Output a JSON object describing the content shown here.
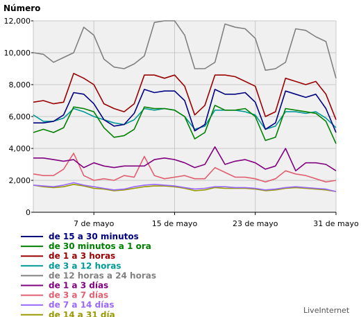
{
  "chart_data": {
    "type": "line",
    "ylabel": "Número",
    "ylim": [
      0,
      12000
    ],
    "yticks": [
      0,
      2000,
      4000,
      6000,
      8000,
      10000,
      12000
    ],
    "ytick_labels": [
      "0",
      "2,000",
      "4,000",
      "6,000",
      "8,000",
      "10,000",
      "12,000"
    ],
    "xlim": [
      1,
      31
    ],
    "xticks": [
      7,
      15,
      23,
      31
    ],
    "xtick_labels": [
      "7 de mayo",
      "15 de mayo",
      "23 de mayo",
      "31 de mayo"
    ],
    "x": [
      1,
      2,
      3,
      4,
      5,
      6,
      7,
      8,
      9,
      10,
      11,
      12,
      13,
      14,
      15,
      16,
      17,
      18,
      19,
      20,
      21,
      22,
      23,
      24,
      25,
      26,
      27,
      28,
      29,
      30,
      31
    ],
    "grid": true,
    "legend_position": "bottom-left",
    "series": [
      {
        "name": "de 15 a 30 minutos",
        "color": "#000080",
        "values": [
          5600,
          5600,
          5700,
          6100,
          7500,
          7400,
          6800,
          5800,
          5400,
          5500,
          6200,
          7700,
          7500,
          7600,
          7600,
          7000,
          5100,
          5500,
          7700,
          7400,
          7400,
          7500,
          6900,
          5200,
          5600,
          7600,
          7400,
          7200,
          7400,
          6500,
          5000
        ]
      },
      {
        "name": "de 30 minutos a 1 ora",
        "color": "#008000",
        "values": [
          5000,
          5200,
          5000,
          5300,
          6600,
          6500,
          6300,
          5300,
          4700,
          4800,
          5200,
          6600,
          6500,
          6500,
          6400,
          6000,
          4600,
          5000,
          6700,
          6400,
          6400,
          6500,
          6000,
          4500,
          4700,
          6500,
          6400,
          6300,
          6200,
          5700,
          4300
        ]
      },
      {
        "name": "de 1 a 3 horas",
        "color": "#990000",
        "values": [
          6900,
          7000,
          6800,
          6900,
          8700,
          8400,
          8000,
          6800,
          6500,
          6300,
          6800,
          8600,
          8600,
          8400,
          8600,
          7900,
          6100,
          6700,
          8600,
          8600,
          8500,
          8200,
          7900,
          6000,
          6300,
          8400,
          8200,
          8000,
          8200,
          7400,
          5800
        ]
      },
      {
        "name": "de 3 a 12 horas",
        "color": "#009999",
        "values": [
          6100,
          5700,
          5700,
          5900,
          6500,
          6300,
          6000,
          5800,
          5600,
          5500,
          5800,
          6500,
          6400,
          6500,
          6400,
          6000,
          5200,
          5400,
          6400,
          6400,
          6400,
          6300,
          6100,
          5200,
          5400,
          6300,
          6300,
          6200,
          6300,
          5900,
          5300
        ]
      },
      {
        "name": "de 12 horas a 24 horas",
        "color": "#808080",
        "values": [
          10000,
          9900,
          9400,
          9700,
          10000,
          11600,
          11100,
          9600,
          9100,
          9000,
          9300,
          9800,
          11900,
          12000,
          12000,
          11100,
          9000,
          9000,
          9400,
          11800,
          11600,
          11500,
          10900,
          8900,
          9000,
          9400,
          11500,
          11400,
          11000,
          10700,
          8400
        ]
      },
      {
        "name": "de 1 a 3 días",
        "color": "#800080",
        "values": [
          3400,
          3400,
          3300,
          3200,
          3300,
          2800,
          3100,
          2900,
          2800,
          2900,
          2900,
          2900,
          3300,
          3400,
          3300,
          3100,
          2800,
          3000,
          4100,
          3000,
          3200,
          3300,
          3100,
          2700,
          2900,
          4000,
          2600,
          3100,
          3100,
          3000,
          2600
        ]
      },
      {
        "name": "de 3 a 7 días",
        "color": "#e06070",
        "values": [
          2400,
          2300,
          2300,
          2700,
          3700,
          2300,
          2000,
          2100,
          2000,
          2300,
          2200,
          3500,
          2300,
          2100,
          2200,
          2300,
          2100,
          2100,
          2800,
          2500,
          2200,
          2200,
          2100,
          1900,
          2100,
          2600,
          2400,
          2300,
          2100,
          1900,
          2000
        ]
      },
      {
        "name": "de 7 a 14 días",
        "color": "#9966ff",
        "values": [
          1700,
          1650,
          1600,
          1700,
          1850,
          1700,
          1600,
          1500,
          1400,
          1450,
          1600,
          1700,
          1750,
          1700,
          1650,
          1550,
          1450,
          1500,
          1600,
          1600,
          1550,
          1550,
          1500,
          1400,
          1450,
          1550,
          1600,
          1550,
          1500,
          1450,
          1300
        ]
      },
      {
        "name": "de 14 a 31 día",
        "color": "#999900",
        "values": [
          1700,
          1600,
          1550,
          1600,
          1750,
          1650,
          1500,
          1450,
          1350,
          1400,
          1500,
          1600,
          1650,
          1650,
          1600,
          1500,
          1350,
          1400,
          1550,
          1500,
          1500,
          1500,
          1450,
          1350,
          1400,
          1500,
          1550,
          1500,
          1450,
          1400,
          1300
        ]
      }
    ]
  },
  "brand": "LiveInternet"
}
